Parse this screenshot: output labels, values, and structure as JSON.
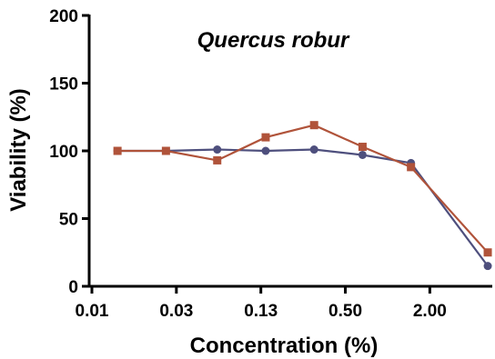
{
  "chart_data": {
    "type": "line",
    "title": "Quercus robur",
    "xlabel": "Concentration (%)",
    "ylabel": "Viability (%)",
    "x_ticks": [
      "0.01",
      "0.03",
      "0.13",
      "0.50",
      "2.00"
    ],
    "y_ticks": [
      0,
      50,
      100,
      150,
      200
    ],
    "ylim": [
      0,
      200
    ],
    "x_scale": "log",
    "x": [
      0.015,
      0.03,
      0.0625,
      0.125,
      0.25,
      0.5,
      1.0,
      3.0
    ],
    "series": [
      {
        "color": "#4e4f7d",
        "marker": "circle",
        "values": [
          100,
          100,
          101,
          100,
          101,
          97,
          91,
          15
        ]
      },
      {
        "color": "#b0533a",
        "marker": "square",
        "values": [
          100,
          100,
          93,
          110,
          119,
          103,
          88,
          25
        ]
      }
    ]
  }
}
